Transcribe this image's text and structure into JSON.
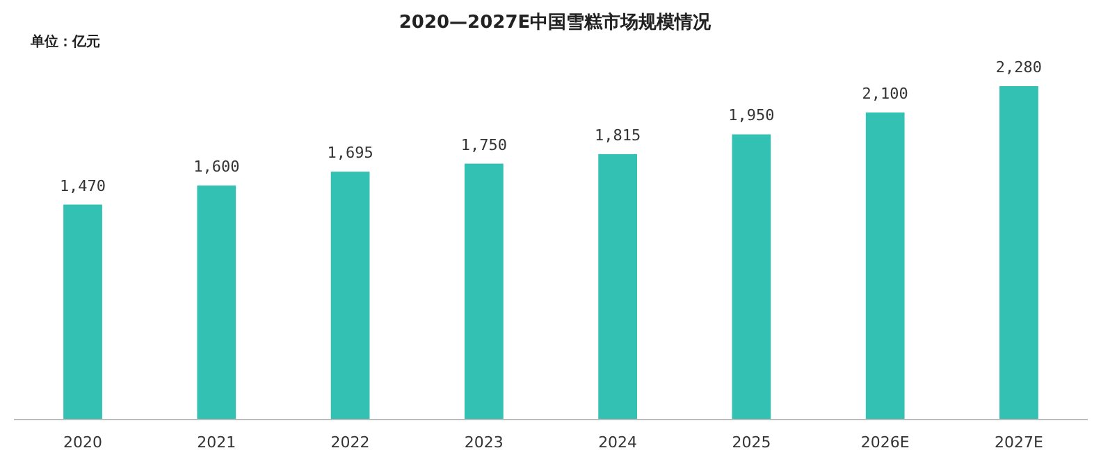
{
  "chart_data": {
    "type": "bar",
    "title": "2020—2027E中国雪糕市场规模情况",
    "annotations": [
      "单位：亿元"
    ],
    "categories": [
      "2020",
      "2021",
      "2022",
      "2023",
      "2024",
      "2025",
      "2026E",
      "2027E"
    ],
    "values": [
      1470,
      1600,
      1695,
      1750,
      1815,
      1950,
      2100,
      2280
    ],
    "color": "#33c1b4",
    "value_labels": [
      "1,470",
      "1,600",
      "1,695",
      "1,750",
      "1,815",
      "1,950",
      "2,100",
      "2,280"
    ],
    "grid": false
  }
}
